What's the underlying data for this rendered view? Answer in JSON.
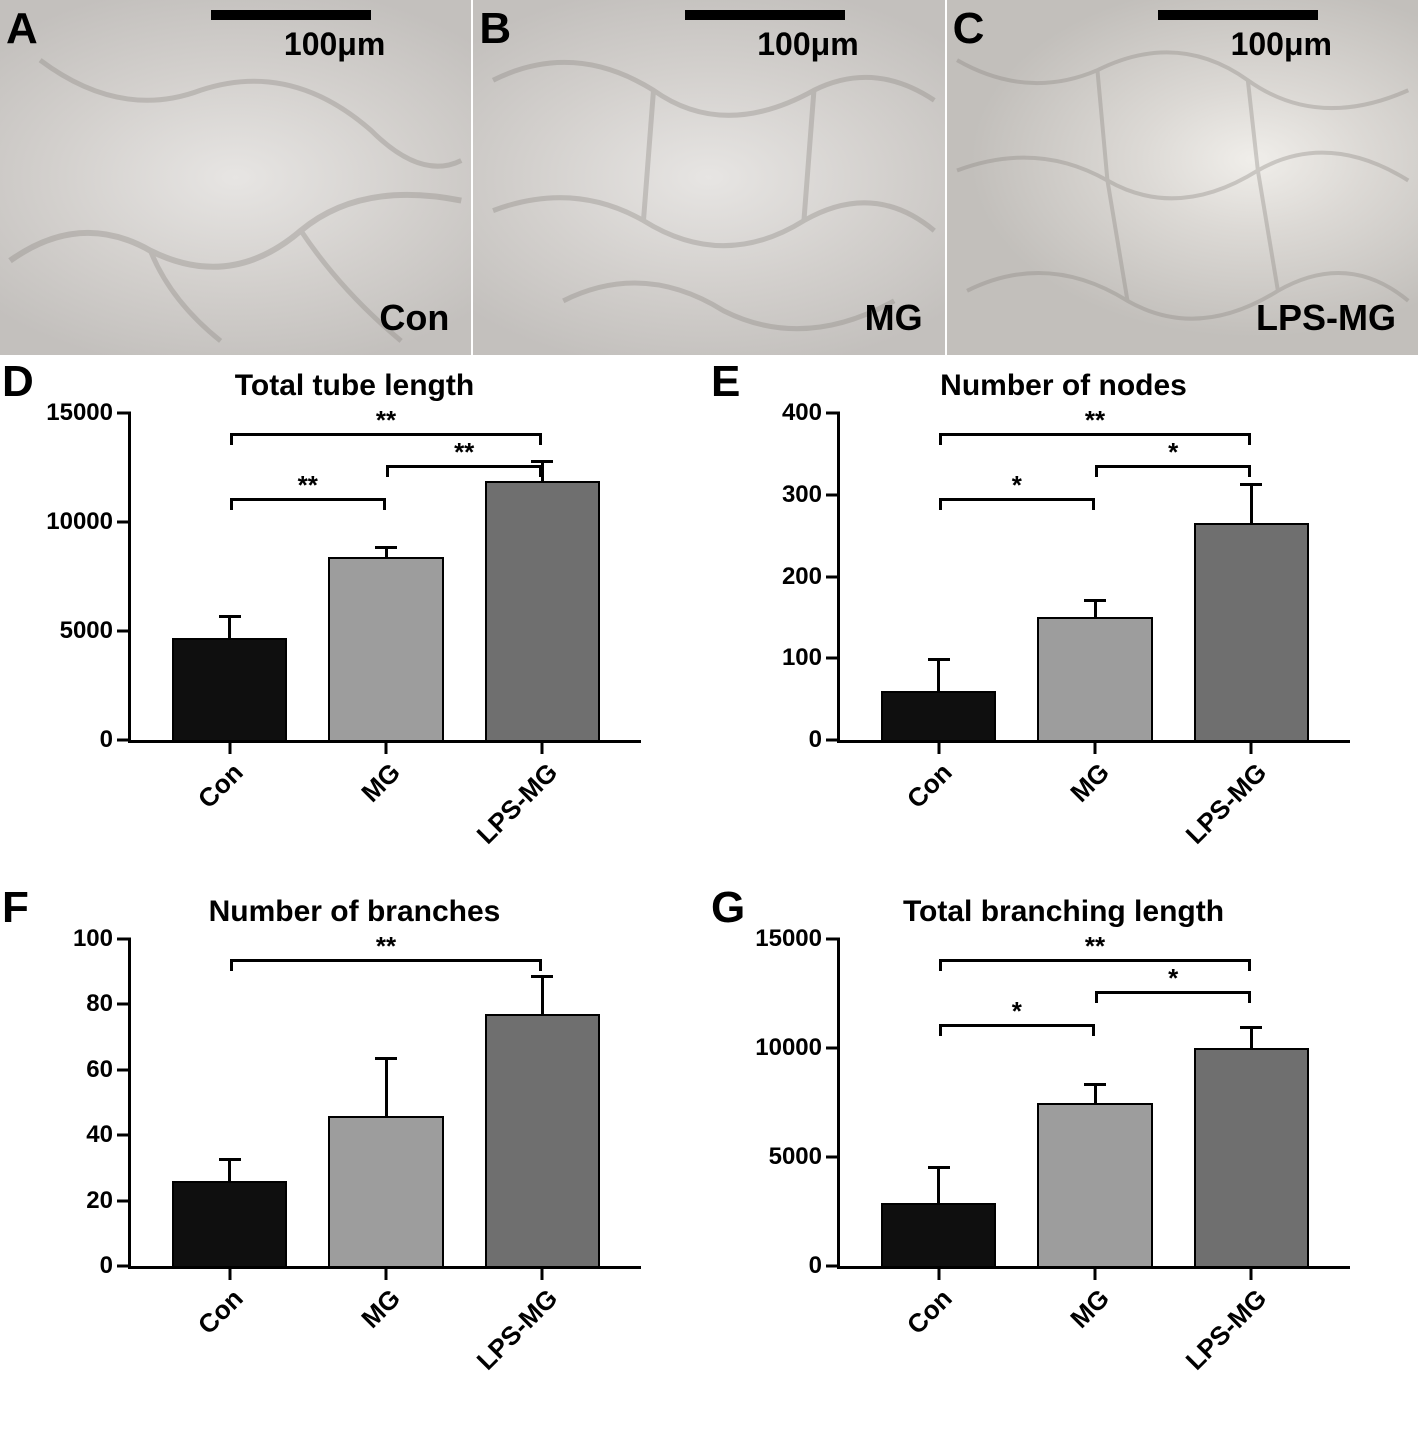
{
  "micrographs": [
    {
      "letter": "A",
      "caption": "Con",
      "scale": "100μm"
    },
    {
      "letter": "B",
      "caption": "MG",
      "scale": "100μm"
    },
    {
      "letter": "C",
      "caption": "LPS-MG",
      "scale": "100μm"
    }
  ],
  "bar_colors": {
    "Con": "#0f0f0f",
    "MG": "#9d9d9d",
    "LPS-MG": "#6f6f6f"
  },
  "bar_border_color": "#000000",
  "axis_color": "#000000",
  "background_color": "#ffffff",
  "title_fontsize": 30,
  "tick_fontsize": 24,
  "xlabel_fontsize": 26,
  "xlabel_rotation_deg": -45,
  "charts": {
    "D": {
      "letter": "D",
      "title": "Total tube length",
      "type": "bar",
      "categories": [
        "Con",
        "MG",
        "LPS-MG"
      ],
      "values": [
        4700,
        8400,
        11900
      ],
      "errors": [
        1050,
        500,
        950
      ],
      "ylim": [
        0,
        15000
      ],
      "yticks": [
        0,
        5000,
        10000,
        15000
      ],
      "sig": [
        {
          "from": "Con",
          "to": "MG",
          "label": "**",
          "level": 1
        },
        {
          "from": "MG",
          "to": "LPS-MG",
          "label": "**",
          "level": 2
        },
        {
          "from": "Con",
          "to": "LPS-MG",
          "label": "**",
          "level": 3
        }
      ]
    },
    "E": {
      "letter": "E",
      "title": "Number of nodes",
      "type": "bar",
      "categories": [
        "Con",
        "MG",
        "LPS-MG"
      ],
      "values": [
        60,
        150,
        265
      ],
      "errors": [
        40,
        22,
        50
      ],
      "ylim": [
        0,
        400
      ],
      "yticks": [
        0,
        100,
        200,
        300,
        400
      ],
      "sig": [
        {
          "from": "Con",
          "to": "MG",
          "label": "*",
          "level": 1
        },
        {
          "from": "MG",
          "to": "LPS-MG",
          "label": "*",
          "level": 2
        },
        {
          "from": "Con",
          "to": "LPS-MG",
          "label": "**",
          "level": 3
        }
      ]
    },
    "F": {
      "letter": "F",
      "title": "Number of branches",
      "type": "bar",
      "categories": [
        "Con",
        "MG",
        "LPS-MG"
      ],
      "values": [
        26,
        46,
        77
      ],
      "errors": [
        7,
        18,
        12
      ],
      "ylim": [
        0,
        100
      ],
      "yticks": [
        0,
        20,
        40,
        60,
        80,
        100
      ],
      "sig": [
        {
          "from": "Con",
          "to": "LPS-MG",
          "label": "**",
          "level": 3
        }
      ]
    },
    "G": {
      "letter": "G",
      "title": "Total branching length",
      "type": "bar",
      "categories": [
        "Con",
        "MG",
        "LPS-MG"
      ],
      "values": [
        2900,
        7500,
        10000
      ],
      "errors": [
        1700,
        900,
        1000
      ],
      "ylim": [
        0,
        15000
      ],
      "yticks": [
        0,
        5000,
        10000,
        15000
      ],
      "sig": [
        {
          "from": "Con",
          "to": "MG",
          "label": "*",
          "level": 1
        },
        {
          "from": "MG",
          "to": "LPS-MG",
          "label": "*",
          "level": 2
        },
        {
          "from": "Con",
          "to": "LPS-MG",
          "label": "**",
          "level": 3
        }
      ]
    }
  }
}
